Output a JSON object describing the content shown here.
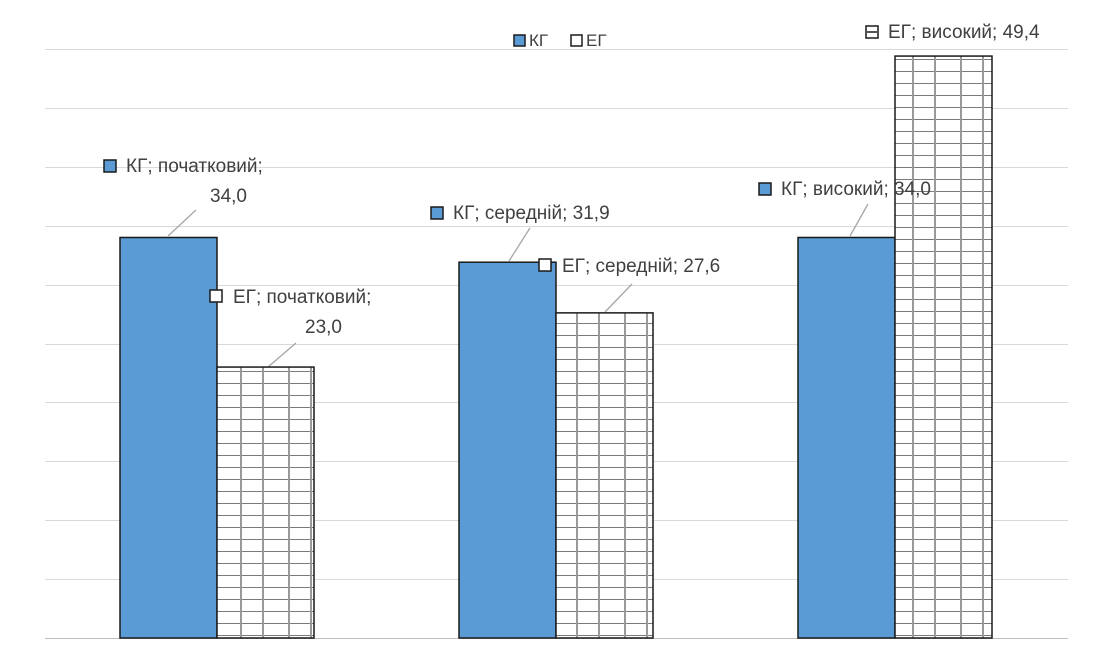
{
  "chart_data": {
    "type": "bar",
    "categories": [
      "початковий",
      "середній",
      "високий"
    ],
    "series": [
      {
        "name": "КГ",
        "values": [
          34.0,
          31.9,
          34.0
        ],
        "color": "#5b9bd5",
        "pattern": "solid"
      },
      {
        "name": "ЕГ",
        "values": [
          23.0,
          27.6,
          49.4
        ],
        "color": "#ffffff",
        "pattern": "brick-grid"
      }
    ],
    "data_labels": [
      [
        "КГ; початковий;",
        "34,0"
      ],
      [
        "КГ; середній; 31,9"
      ],
      [
        "КГ; високий; 34,0"
      ],
      [
        "ЕГ; початковий;",
        "23,0"
      ],
      [
        "ЕГ; середній; 27,6"
      ],
      [
        "ЕГ; високий; 49,4"
      ]
    ],
    "ylim": [
      0,
      50
    ],
    "grid": true,
    "legend_position": "top-center",
    "title": "",
    "xlabel": "",
    "ylabel": ""
  }
}
